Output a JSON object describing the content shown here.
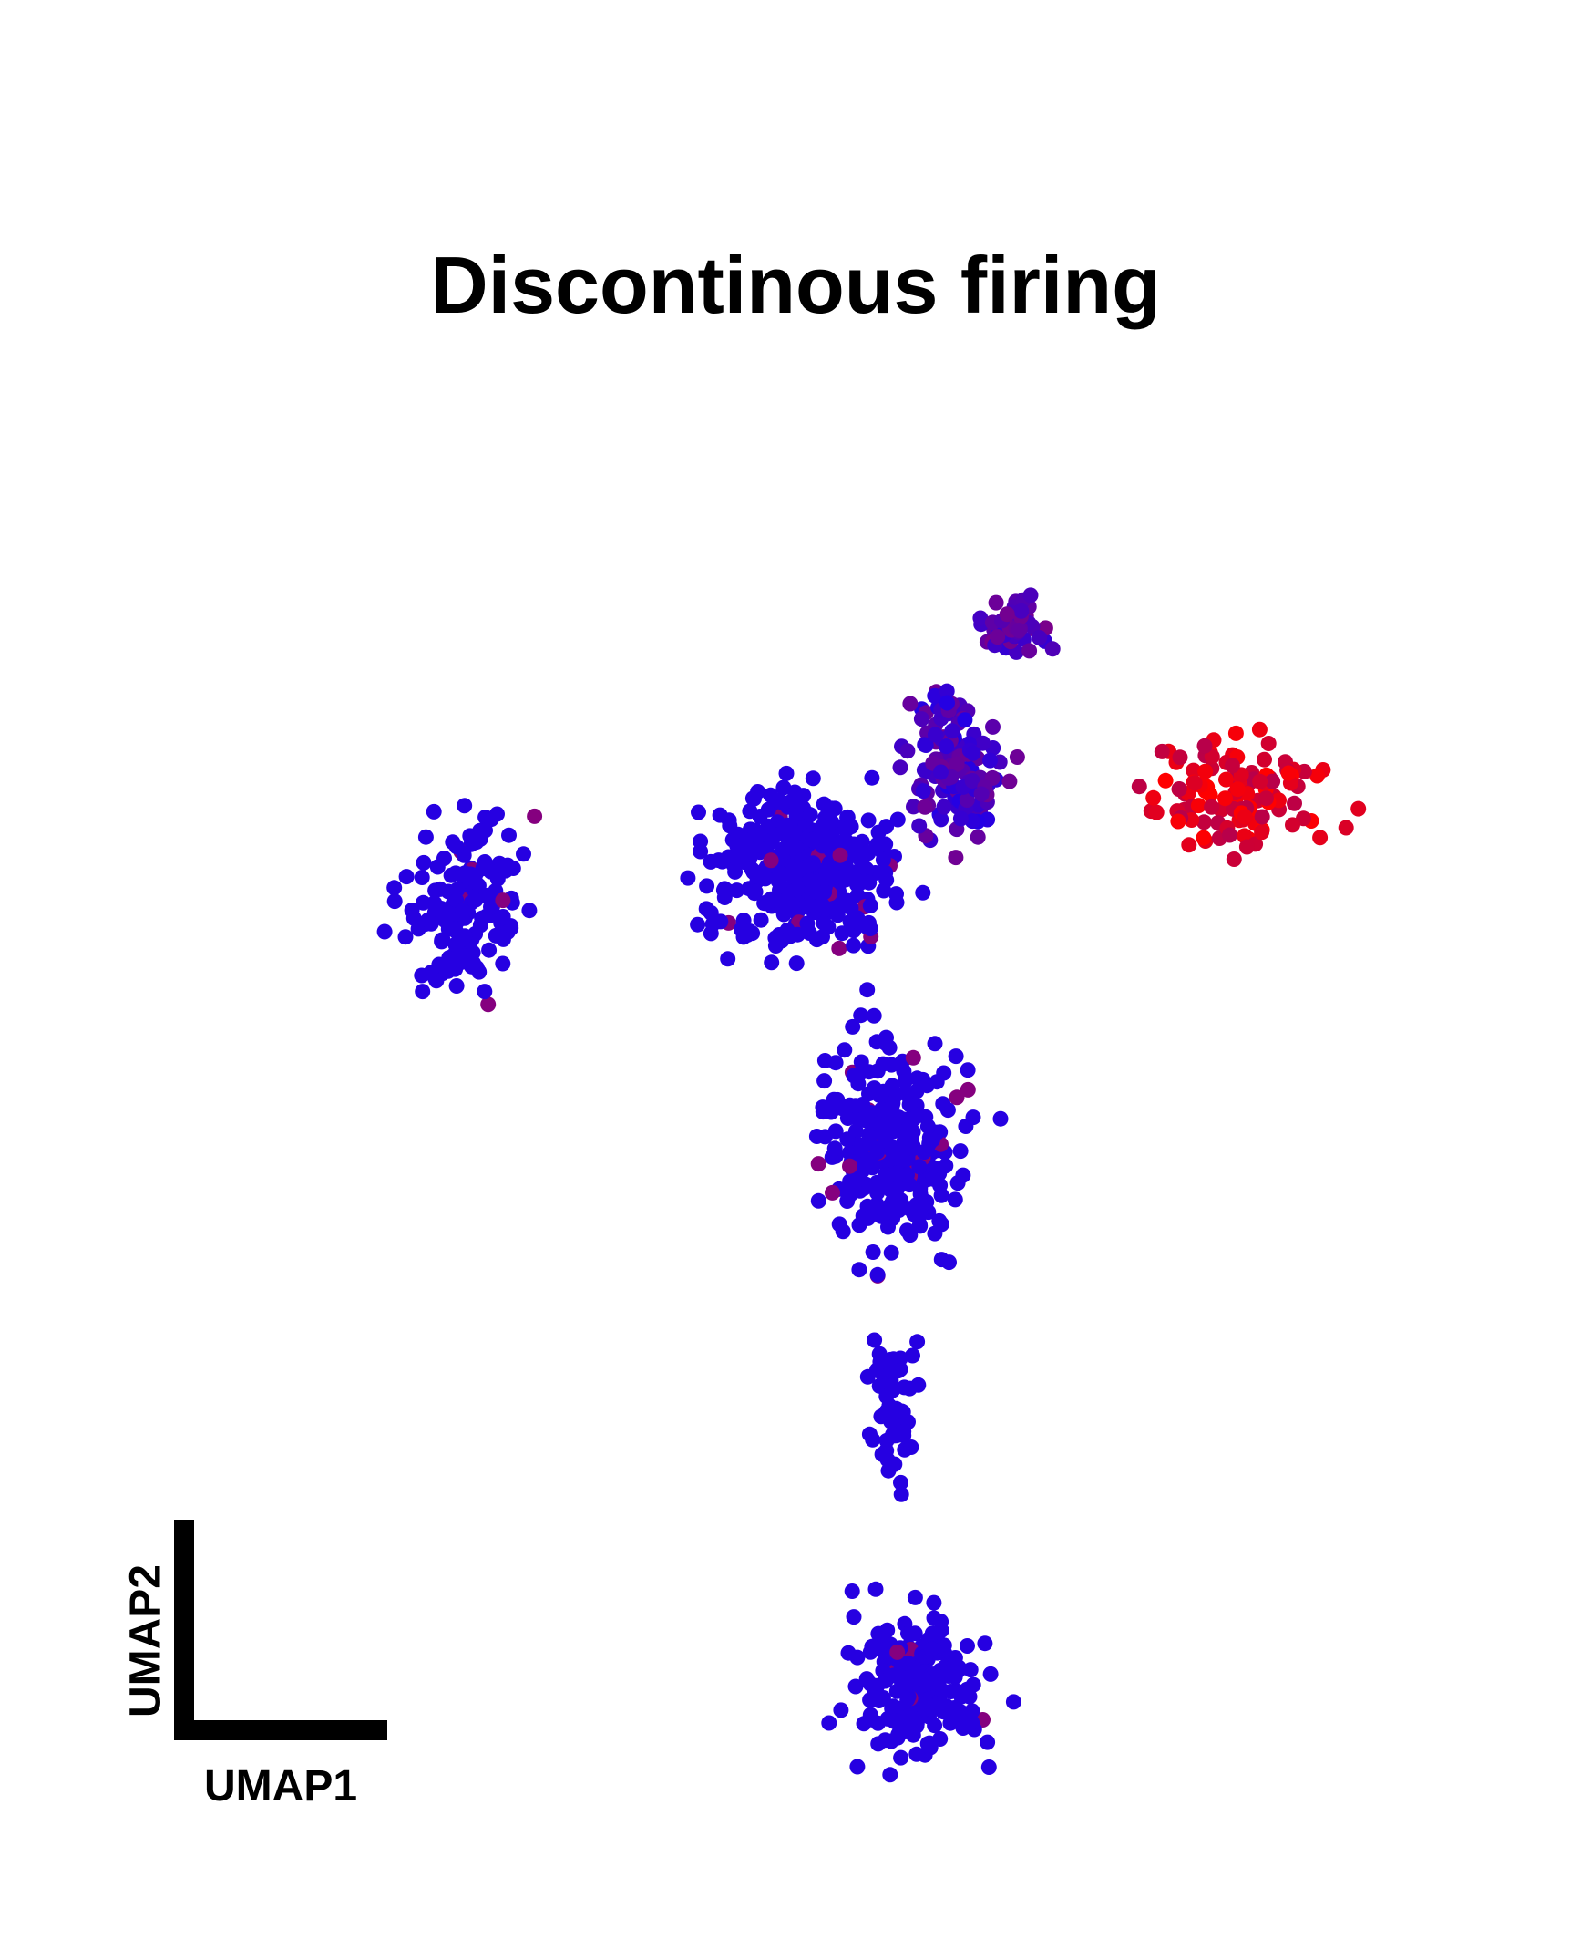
{
  "chart_data": {
    "type": "scatter",
    "title": "Discontinous firing",
    "xlabel": "UMAP1",
    "ylabel": "UMAP2",
    "axes_style": "scale-bar corner (no ticks)",
    "grid": false,
    "color_scale": {
      "low": "#2200e6",
      "high": "#ff0000"
    },
    "point_color": "#2200e6",
    "clusters": [
      {
        "name": "left_lobe",
        "x": -6.8,
        "y": 4.2,
        "sx": 1.0,
        "sy": 1.4,
        "n": 150,
        "expr": 0.03
      },
      {
        "name": "center_upper",
        "x": -1.0,
        "y": 4.8,
        "sx": 1.5,
        "sy": 1.2,
        "n": 380,
        "expr": 0.05
      },
      {
        "name": "center_right",
        "x": 1.6,
        "y": 6.4,
        "sx": 0.8,
        "sy": 1.1,
        "n": 130,
        "expr": 0.18
      },
      {
        "name": "top_spike",
        "x": 2.6,
        "y": 8.6,
        "sx": 0.6,
        "sy": 0.5,
        "n": 60,
        "expr": 0.25
      },
      {
        "name": "right_arm",
        "x": 6.6,
        "y": 6.0,
        "sx": 1.6,
        "sy": 0.8,
        "n": 120,
        "expr": 0.85
      },
      {
        "name": "middle_stem",
        "x": 0.5,
        "y": 0.5,
        "sx": 1.2,
        "sy": 1.5,
        "n": 280,
        "expr": 0.06
      },
      {
        "name": "lower_stem",
        "x": 0.6,
        "y": -3.6,
        "sx": 0.4,
        "sy": 1.2,
        "n": 60,
        "expr": 0.02
      },
      {
        "name": "bottom_cluster",
        "x": 1.0,
        "y": -8.0,
        "sx": 1.2,
        "sy": 1.2,
        "n": 190,
        "expr": 0.05
      }
    ],
    "xlim": [
      -10,
      10
    ],
    "ylim": [
      -10,
      10
    ]
  }
}
